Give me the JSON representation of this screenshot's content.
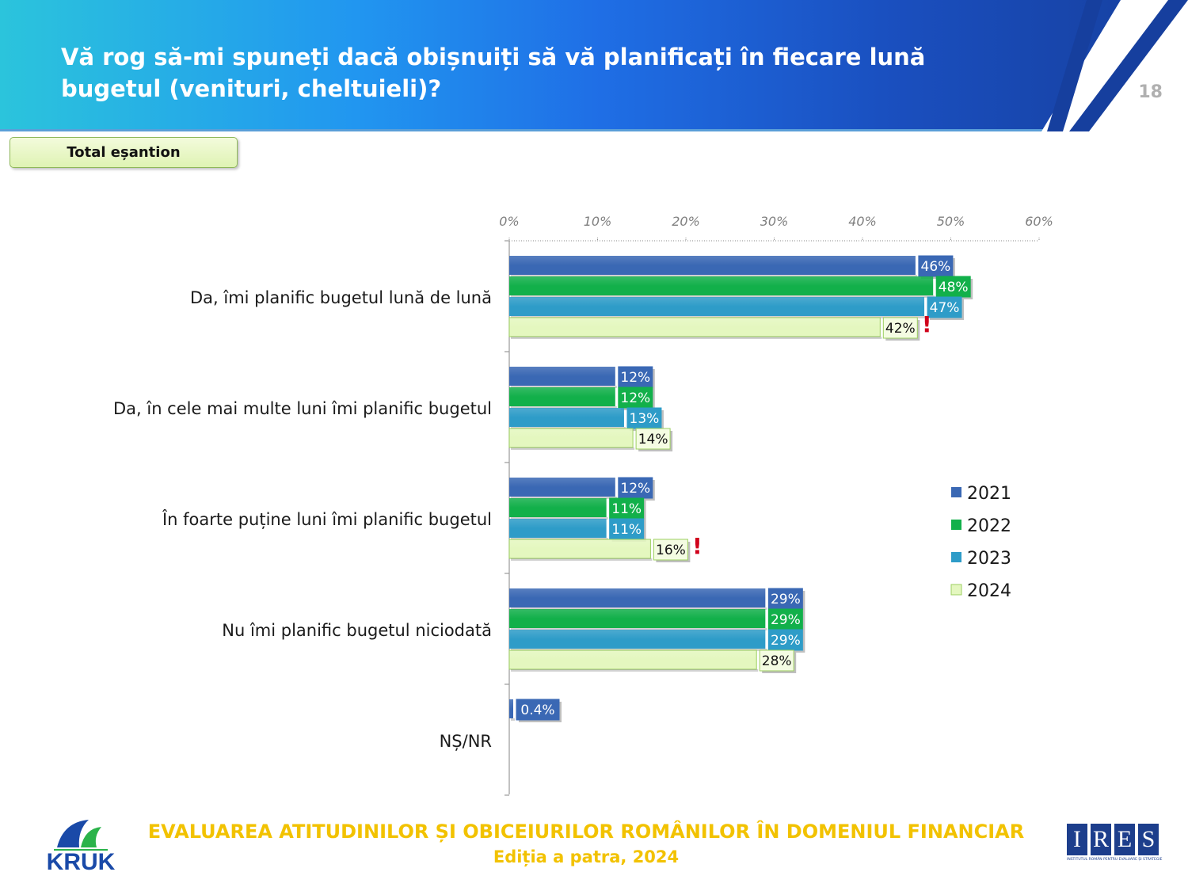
{
  "header": {
    "title": "Vă rog să-mi spuneți dacă obișnuiți să vă planificați în fiecare lună bugetul (venituri, cheltuieli)?",
    "page_number": "18"
  },
  "badge": {
    "label": "Total eșantion"
  },
  "footer": {
    "title": "EVALUAREA ATITUDINILOR ȘI OBICEIURILOR ROMÂNILOR ÎN DOMENIUL FINANCIAR",
    "subtitle": "Ediția a patra, 2024"
  },
  "logos": {
    "left": "KRUK",
    "right_letters": [
      "I",
      "R",
      "E",
      "S"
    ],
    "right_subtitle": "INSTITUTUL ROMÂN PENTRU EVALUARE ȘI STRATEGIE"
  },
  "colors": {
    "2021": "#3a68b4",
    "2022": "#12b04a",
    "2023": "#2e9cc8",
    "2024": "#e4f7bf",
    "title_text": "#ffffff",
    "footer_text": "#f2c200",
    "alert": "#d0021b"
  },
  "chart_data": {
    "type": "bar",
    "orientation": "horizontal",
    "categories": [
      "Da, îmi planific bugetul lună de lună",
      "Da, în cele mai multe luni îmi planific bugetul",
      "În foarte puține luni îmi planific bugetul",
      "Nu îmi planific bugetul niciodată",
      "NȘ/NR"
    ],
    "series": [
      {
        "name": "2021",
        "values": [
          46,
          12,
          12,
          29,
          0.4
        ],
        "labels": [
          "46%",
          "12%",
          "12%",
          "29%",
          "0.4%"
        ]
      },
      {
        "name": "2022",
        "values": [
          48,
          12,
          11,
          29,
          null
        ],
        "labels": [
          "48%",
          "12%",
          "11%",
          "29%",
          ""
        ]
      },
      {
        "name": "2023",
        "values": [
          47,
          13,
          11,
          29,
          null
        ],
        "labels": [
          "47%",
          "13%",
          "11%",
          "29%",
          ""
        ]
      },
      {
        "name": "2024",
        "values": [
          42,
          14,
          16,
          28,
          null
        ],
        "labels": [
          "42%",
          "14%",
          "16%",
          "28%",
          ""
        ]
      }
    ],
    "xlim": [
      0,
      60
    ],
    "xticks": [
      "0%",
      "10%",
      "20%",
      "30%",
      "40%",
      "50%",
      "60%"
    ],
    "axis_position": "top",
    "legend": "right",
    "alerts": [
      {
        "category_index": 0,
        "series": "2024",
        "symbol": "!"
      },
      {
        "category_index": 2,
        "series": "2024",
        "symbol": "!"
      }
    ]
  }
}
